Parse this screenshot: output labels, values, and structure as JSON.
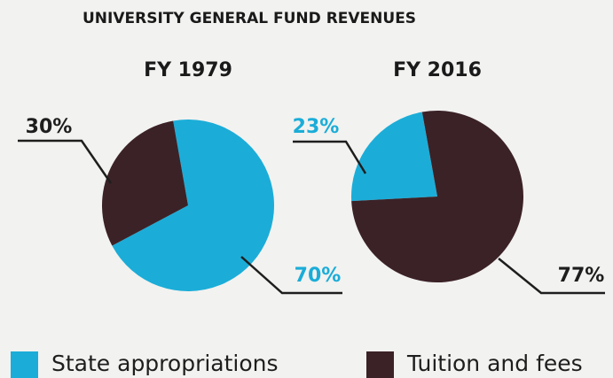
{
  "title": "UNIVERSITY GENERAL FUND REVENUES",
  "chart_data": [
    {
      "type": "pie",
      "title": "FY 1979",
      "categories": [
        "State appropriations",
        "Tuition and fees"
      ],
      "values": [
        70,
        30
      ],
      "value_labels": [
        "70%",
        "30%"
      ],
      "colors": [
        "#1badd8",
        "#3b2227"
      ]
    },
    {
      "type": "pie",
      "title": "FY 2016",
      "categories": [
        "State appropriations",
        "Tuition and fees"
      ],
      "values": [
        23,
        77
      ],
      "value_labels": [
        "23%",
        "77%"
      ],
      "colors": [
        "#1badd8",
        "#3b2227"
      ]
    }
  ]
}
